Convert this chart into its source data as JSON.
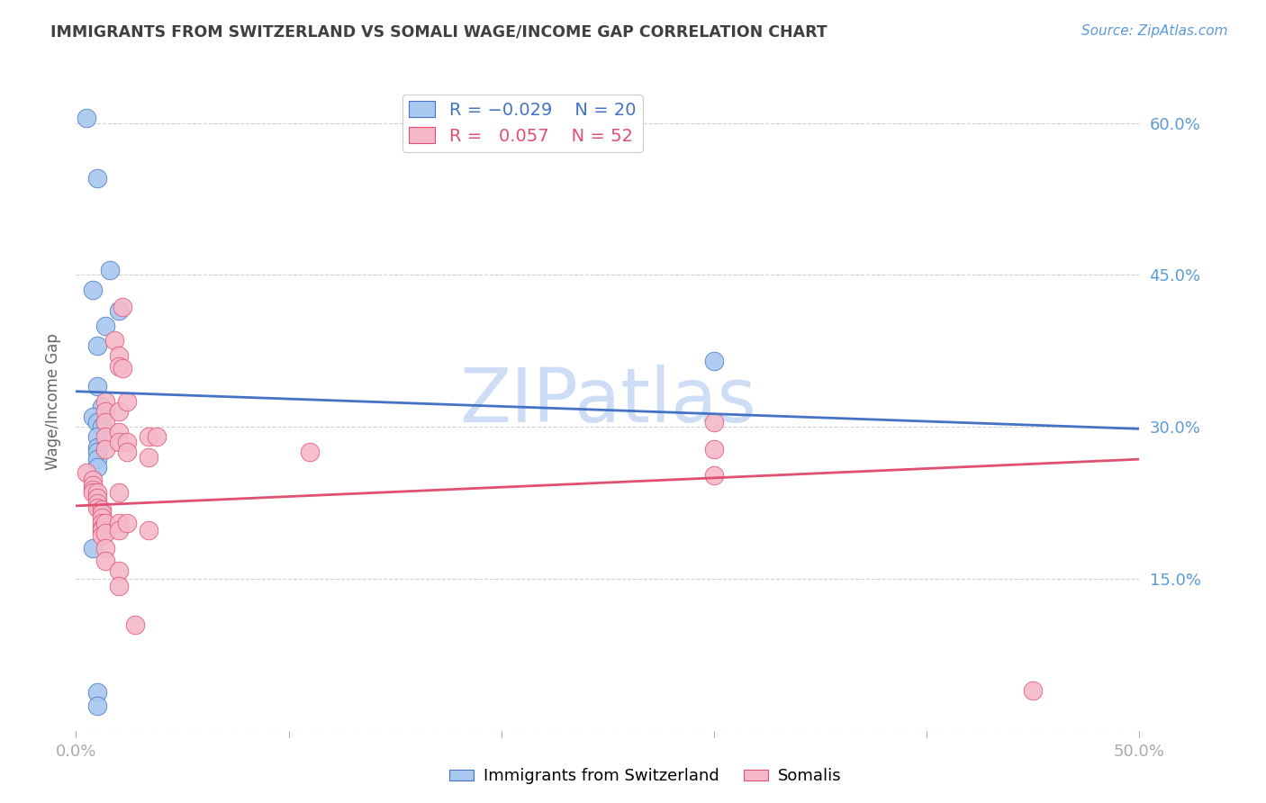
{
  "title": "IMMIGRANTS FROM SWITZERLAND VS SOMALI WAGE/INCOME GAP CORRELATION CHART",
  "source": "Source: ZipAtlas.com",
  "ylabel": "Wage/Income Gap",
  "xmin": 0.0,
  "xmax": 0.5,
  "ymin": 0.0,
  "ymax": 0.65,
  "yticks": [
    0.0,
    0.15,
    0.3,
    0.45,
    0.6
  ],
  "ytick_labels": [
    "",
    "15.0%",
    "30.0%",
    "45.0%",
    "60.0%"
  ],
  "xticks": [
    0.0,
    0.1,
    0.2,
    0.3,
    0.4,
    0.5
  ],
  "xtick_labels": [
    "0.0%",
    "",
    "",
    "",
    "",
    "50.0%"
  ],
  "blue_scatter": [
    [
      0.005,
      0.605
    ],
    [
      0.01,
      0.545
    ],
    [
      0.008,
      0.435
    ],
    [
      0.016,
      0.455
    ],
    [
      0.02,
      0.415
    ],
    [
      0.014,
      0.4
    ],
    [
      0.01,
      0.38
    ],
    [
      0.01,
      0.34
    ],
    [
      0.012,
      0.32
    ],
    [
      0.008,
      0.31
    ],
    [
      0.01,
      0.305
    ],
    [
      0.012,
      0.3
    ],
    [
      0.01,
      0.29
    ],
    [
      0.01,
      0.28
    ],
    [
      0.01,
      0.275
    ],
    [
      0.01,
      0.268
    ],
    [
      0.01,
      0.26
    ],
    [
      0.008,
      0.18
    ],
    [
      0.01,
      0.038
    ],
    [
      0.01,
      0.025
    ],
    [
      0.3,
      0.365
    ]
  ],
  "pink_scatter": [
    [
      0.005,
      0.255
    ],
    [
      0.008,
      0.248
    ],
    [
      0.008,
      0.242
    ],
    [
      0.008,
      0.238
    ],
    [
      0.008,
      0.235
    ],
    [
      0.01,
      0.235
    ],
    [
      0.01,
      0.23
    ],
    [
      0.01,
      0.225
    ],
    [
      0.01,
      0.22
    ],
    [
      0.012,
      0.218
    ],
    [
      0.012,
      0.215
    ],
    [
      0.012,
      0.21
    ],
    [
      0.012,
      0.205
    ],
    [
      0.012,
      0.2
    ],
    [
      0.012,
      0.198
    ],
    [
      0.012,
      0.193
    ],
    [
      0.014,
      0.325
    ],
    [
      0.014,
      0.315
    ],
    [
      0.014,
      0.305
    ],
    [
      0.014,
      0.29
    ],
    [
      0.014,
      0.278
    ],
    [
      0.014,
      0.205
    ],
    [
      0.014,
      0.195
    ],
    [
      0.014,
      0.18
    ],
    [
      0.014,
      0.168
    ],
    [
      0.018,
      0.385
    ],
    [
      0.02,
      0.37
    ],
    [
      0.02,
      0.36
    ],
    [
      0.02,
      0.315
    ],
    [
      0.02,
      0.295
    ],
    [
      0.02,
      0.285
    ],
    [
      0.02,
      0.235
    ],
    [
      0.02,
      0.205
    ],
    [
      0.02,
      0.198
    ],
    [
      0.02,
      0.158
    ],
    [
      0.02,
      0.143
    ],
    [
      0.022,
      0.418
    ],
    [
      0.022,
      0.358
    ],
    [
      0.024,
      0.325
    ],
    [
      0.024,
      0.285
    ],
    [
      0.024,
      0.275
    ],
    [
      0.024,
      0.205
    ],
    [
      0.028,
      0.105
    ],
    [
      0.034,
      0.29
    ],
    [
      0.034,
      0.27
    ],
    [
      0.034,
      0.198
    ],
    [
      0.038,
      0.29
    ],
    [
      0.11,
      0.275
    ],
    [
      0.3,
      0.305
    ],
    [
      0.3,
      0.278
    ],
    [
      0.3,
      0.252
    ],
    [
      0.45,
      0.04
    ]
  ],
  "blue_line_x": [
    0.0,
    0.5
  ],
  "blue_line_y": [
    0.335,
    0.298
  ],
  "pink_line_x": [
    0.0,
    0.5
  ],
  "pink_line_y": [
    0.222,
    0.268
  ],
  "watermark": "ZIPatlas",
  "background_color": "#ffffff",
  "scatter_blue_color": "#a8c8f0",
  "scatter_pink_color": "#f5b8c8",
  "line_blue_color": "#4472c4",
  "line_pink_color": "#e05070",
  "title_color": "#404040",
  "tick_color": "#5b9bd5",
  "watermark_color": "#ccddf5",
  "grid_color": "#d0d0d0"
}
